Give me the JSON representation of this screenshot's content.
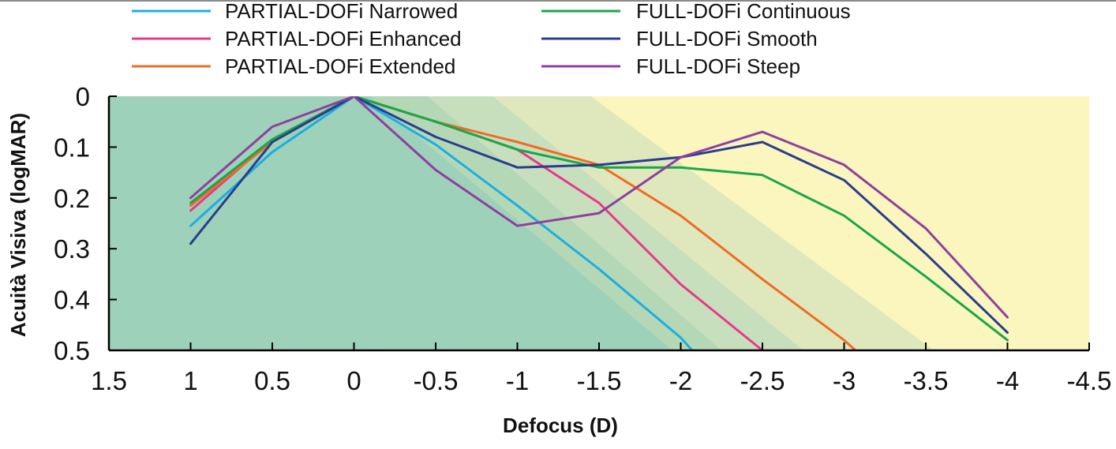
{
  "chart_data": {
    "type": "line",
    "title": "",
    "xlabel": "Defocus (D)",
    "ylabel": "Acuità Visiva (logMAR)",
    "xlim": [
      1.5,
      -4.5
    ],
    "ylim": [
      0,
      0.5
    ],
    "y_inverted": true,
    "grid": false,
    "legend_position": "top",
    "x": [
      1,
      0.5,
      0,
      -0.5,
      -1,
      -1.5,
      -2,
      -2.5,
      -3,
      -3.5,
      -4
    ],
    "x_ticks": [
      1.5,
      1,
      0.5,
      0,
      -0.5,
      -1,
      -1.5,
      -2,
      -2.5,
      -3,
      -3.5,
      -4,
      -4.5
    ],
    "y_ticks": [
      0,
      0.1,
      0.2,
      0.3,
      0.4,
      0.5
    ],
    "series": [
      {
        "name": "PARTIAL-DOFi Narrowed",
        "color": "#1aaee5",
        "x": [
          1,
          0.5,
          0,
          -0.5,
          -1,
          -1.5,
          -2,
          -2.07
        ],
        "values": [
          0.255,
          0.11,
          0,
          0.095,
          0.215,
          0.34,
          0.475,
          0.5
        ]
      },
      {
        "name": "PARTIAL-DOFi Enhanced",
        "color": "#e8398a",
        "x": [
          1,
          0.5,
          0,
          -0.5,
          -1,
          -1.5,
          -2,
          -2.5
        ],
        "values": [
          0.225,
          0.085,
          0,
          0.05,
          0.105,
          0.21,
          0.37,
          0.5
        ]
      },
      {
        "name": "PARTIAL-DOFi Extended",
        "color": "#f26b22",
        "x": [
          1,
          0.5,
          0,
          -0.5,
          -1,
          -1.5,
          -2,
          -2.5,
          -3,
          -3.07
        ],
        "values": [
          0.215,
          0.09,
          0,
          0.05,
          0.09,
          0.135,
          0.235,
          0.36,
          0.48,
          0.5
        ]
      },
      {
        "name": "FULL-DOFi Continuous",
        "color": "#1aa64a",
        "x": [
          1,
          0.5,
          0,
          -0.5,
          -1,
          -1.5,
          -2,
          -2.5,
          -3,
          -3.5,
          -4
        ],
        "values": [
          0.21,
          0.085,
          0,
          0.05,
          0.105,
          0.14,
          0.14,
          0.155,
          0.235,
          0.355,
          0.48
        ]
      },
      {
        "name": "FULL-DOFi Smooth",
        "color": "#2a3d8f",
        "x": [
          1,
          0.5,
          0,
          -0.5,
          -1,
          -1.5,
          -2,
          -2.5,
          -3,
          -3.5,
          -4
        ],
        "values": [
          0.29,
          0.09,
          0,
          0.08,
          0.14,
          0.135,
          0.12,
          0.09,
          0.165,
          0.31,
          0.465
        ]
      },
      {
        "name": "FULL-DOFi Steep",
        "color": "#8f3fa0",
        "x": [
          1,
          0.5,
          0,
          -0.5,
          -1,
          -1.5,
          -2,
          -2.5,
          -3,
          -3.5,
          -4
        ],
        "values": [
          0.2,
          0.06,
          0,
          0.145,
          0.255,
          0.23,
          0.12,
          0.07,
          0.135,
          0.26,
          0.435
        ]
      }
    ],
    "background_zones": {
      "base_color": "#fbf6bd",
      "zones": [
        {
          "color": "#dfe8bc",
          "top_x": -1.45,
          "bottom_x": -3.55
        },
        {
          "color": "#c7dfbc",
          "top_x": -0.85,
          "bottom_x": -2.75
        },
        {
          "color": "#b4d8b6",
          "top_x": -0.45,
          "bottom_x": -2.25
        },
        {
          "color": "#9ed1b9",
          "top_x": -0.1,
          "bottom_x": -1.95
        }
      ]
    }
  }
}
